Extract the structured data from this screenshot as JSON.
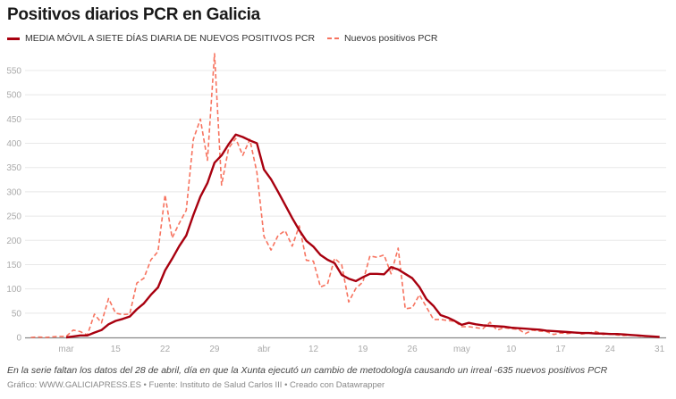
{
  "title": "Positivos diarios PCR en Galicia",
  "note": "En la serie faltan los datos del 28 de abril, día en que la Xunta ejecutó un cambio de metodología causando un irreal -635 nuevos positivos PCR",
  "credit": "Gráfico: WWW.GALICIAPRESS.ES • Fuente: Instituto de Salud Carlos III • Creado con Datawrapper",
  "colors": {
    "moving_average": "#a8000f",
    "daily": "#f7735f",
    "grid": "#e8e8e8",
    "axis": "#888888",
    "tick_text": "#aaaaaa"
  },
  "chart_data": {
    "type": "line",
    "title": "Positivos diarios PCR en Galicia",
    "xlabel": "",
    "ylabel": "",
    "x_start": "2020-03-03",
    "x_end": "2020-05-31",
    "x_tick_labels": [
      "mar",
      "15",
      "22",
      "29",
      "abr",
      "12",
      "19",
      "26",
      "may",
      "10",
      "17",
      "24",
      "31"
    ],
    "x_tick_dates": [
      "2020-03-08",
      "2020-03-15",
      "2020-03-22",
      "2020-03-29",
      "2020-04-05",
      "2020-04-12",
      "2020-04-19",
      "2020-04-26",
      "2020-05-03",
      "2020-05-10",
      "2020-05-17",
      "2020-05-24",
      "2020-05-31"
    ],
    "y_ticks": [
      0,
      50,
      100,
      150,
      200,
      250,
      300,
      350,
      400,
      450,
      500,
      550
    ],
    "ylim": [
      0,
      585
    ],
    "grid": true,
    "legend_placement": "top-left",
    "series": [
      {
        "name": "MEDIA MÓVIL A SIETE DÍAS DIARIA DE NUEVOS POSITIVOS PCR",
        "style": "solid",
        "values": [
          null,
          null,
          null,
          null,
          null,
          0,
          2,
          4,
          4,
          10,
          15,
          27,
          34,
          38,
          43,
          58,
          70,
          88,
          103,
          138,
          162,
          188,
          210,
          252,
          290,
          318,
          360,
          375,
          398,
          418,
          413,
          406,
          400,
          346,
          326,
          300,
          273,
          246,
          221,
          199,
          187,
          170,
          160,
          153,
          129,
          121,
          116,
          124,
          131,
          131,
          130,
          145,
          140,
          131,
          122,
          104,
          79,
          65,
          46,
          41,
          34,
          26,
          30,
          27,
          25,
          24,
          23,
          22,
          20,
          19,
          18,
          17,
          16,
          14,
          13,
          12,
          11,
          10,
          9,
          9,
          8,
          8,
          7,
          7,
          6,
          5,
          4,
          3,
          2,
          1
        ]
      },
      {
        "name": "Nuevos positivos PCR",
        "style": "dashed",
        "values": [
          0,
          1,
          0,
          1,
          2,
          2,
          15,
          12,
          5,
          48,
          30,
          80,
          50,
          47,
          48,
          112,
          122,
          160,
          177,
          294,
          205,
          235,
          262,
          408,
          450,
          365,
          585,
          314,
          390,
          410,
          375,
          408,
          340,
          208,
          180,
          210,
          220,
          188,
          230,
          159,
          157,
          104,
          110,
          163,
          150,
          73,
          101,
          114,
          168,
          165,
          170,
          131,
          184,
          59,
          61,
          88,
          null,
          37,
          37,
          35,
          33,
          22,
          22,
          20,
          18,
          31,
          15,
          20,
          18,
          17,
          8,
          15,
          13,
          12,
          6,
          9,
          8,
          10,
          7,
          9,
          12,
          6,
          8,
          5,
          4,
          5,
          3,
          2,
          2,
          1
        ]
      }
    ]
  }
}
